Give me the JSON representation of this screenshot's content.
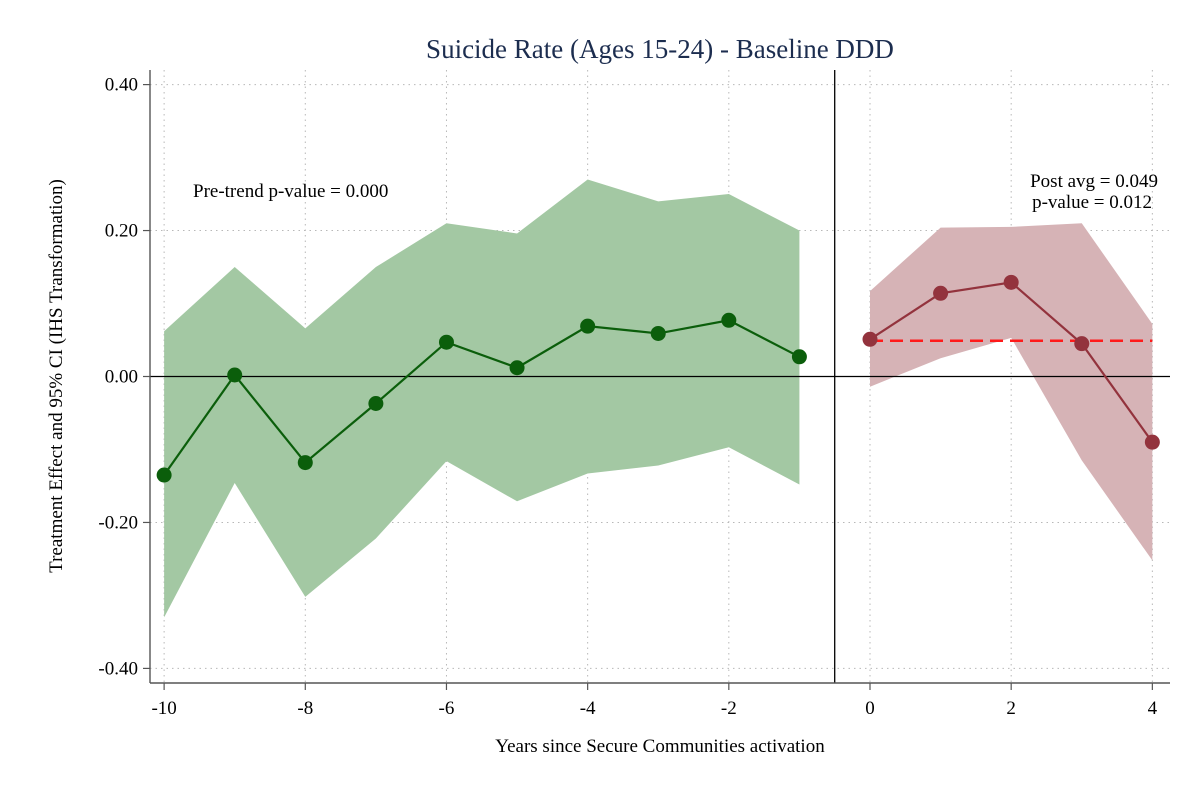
{
  "chart_data": {
    "type": "line",
    "title": "Suicide Rate (Ages 15-24) - Baseline DDD",
    "xlabel": "Years since Secure Communities activation",
    "ylabel": "Treatment Effect and 95% CI (IHS Transformation)",
    "xlim": [
      -10.2,
      4.25
    ],
    "ylim": [
      -0.42,
      0.42
    ],
    "xticks": [
      -10,
      -8,
      -6,
      -4,
      -2,
      0,
      2,
      4
    ],
    "xtick_labels": [
      "-10",
      "-8",
      "-6",
      "-4",
      "-2",
      "0",
      "2",
      "4"
    ],
    "yticks": [
      -0.4,
      -0.2,
      0.0,
      0.2,
      0.4
    ],
    "ytick_labels": [
      "-0.40",
      "-0.20",
      "0.00",
      "0.20",
      "0.40"
    ],
    "grid": true,
    "event_line_x": -0.5,
    "zero_line_y": 0,
    "series": [
      {
        "x": [
          -10,
          -9,
          -8,
          -7,
          -6,
          -5,
          -4,
          -3,
          -2,
          -1
        ],
        "values": [
          -0.135,
          0.002,
          -0.118,
          -0.037,
          0.047,
          0.012,
          0.069,
          0.059,
          0.077,
          0.027
        ],
        "ci_lower": [
          -0.33,
          -0.146,
          -0.302,
          -0.222,
          -0.116,
          -0.171,
          -0.133,
          -0.122,
          -0.097,
          -0.148
        ],
        "ci_upper": [
          0.062,
          0.15,
          0.066,
          0.15,
          0.21,
          0.196,
          0.27,
          0.24,
          0.25,
          0.2
        ],
        "color": "#0b5e0b",
        "band_color": "#a3c8a3"
      },
      {
        "x": [
          0,
          1,
          2,
          3,
          4
        ],
        "values": [
          0.051,
          0.114,
          0.129,
          0.045,
          -0.09
        ],
        "ci_lower": [
          -0.014,
          0.025,
          0.053,
          -0.115,
          -0.252
        ],
        "ci_upper": [
          0.117,
          0.204,
          0.205,
          0.21,
          0.072
        ],
        "color": "#93333d",
        "band_color": "#d6b3b6"
      }
    ],
    "reference_line": {
      "y": 0.049,
      "x_range": [
        0,
        4
      ],
      "color": "#ff1a1a",
      "style": "dashed"
    },
    "annotations": {
      "pretrend": "Pre-trend p-value = 0.000",
      "post_avg": "Post avg = 0.049",
      "post_p": "p-value = 0.012"
    }
  }
}
